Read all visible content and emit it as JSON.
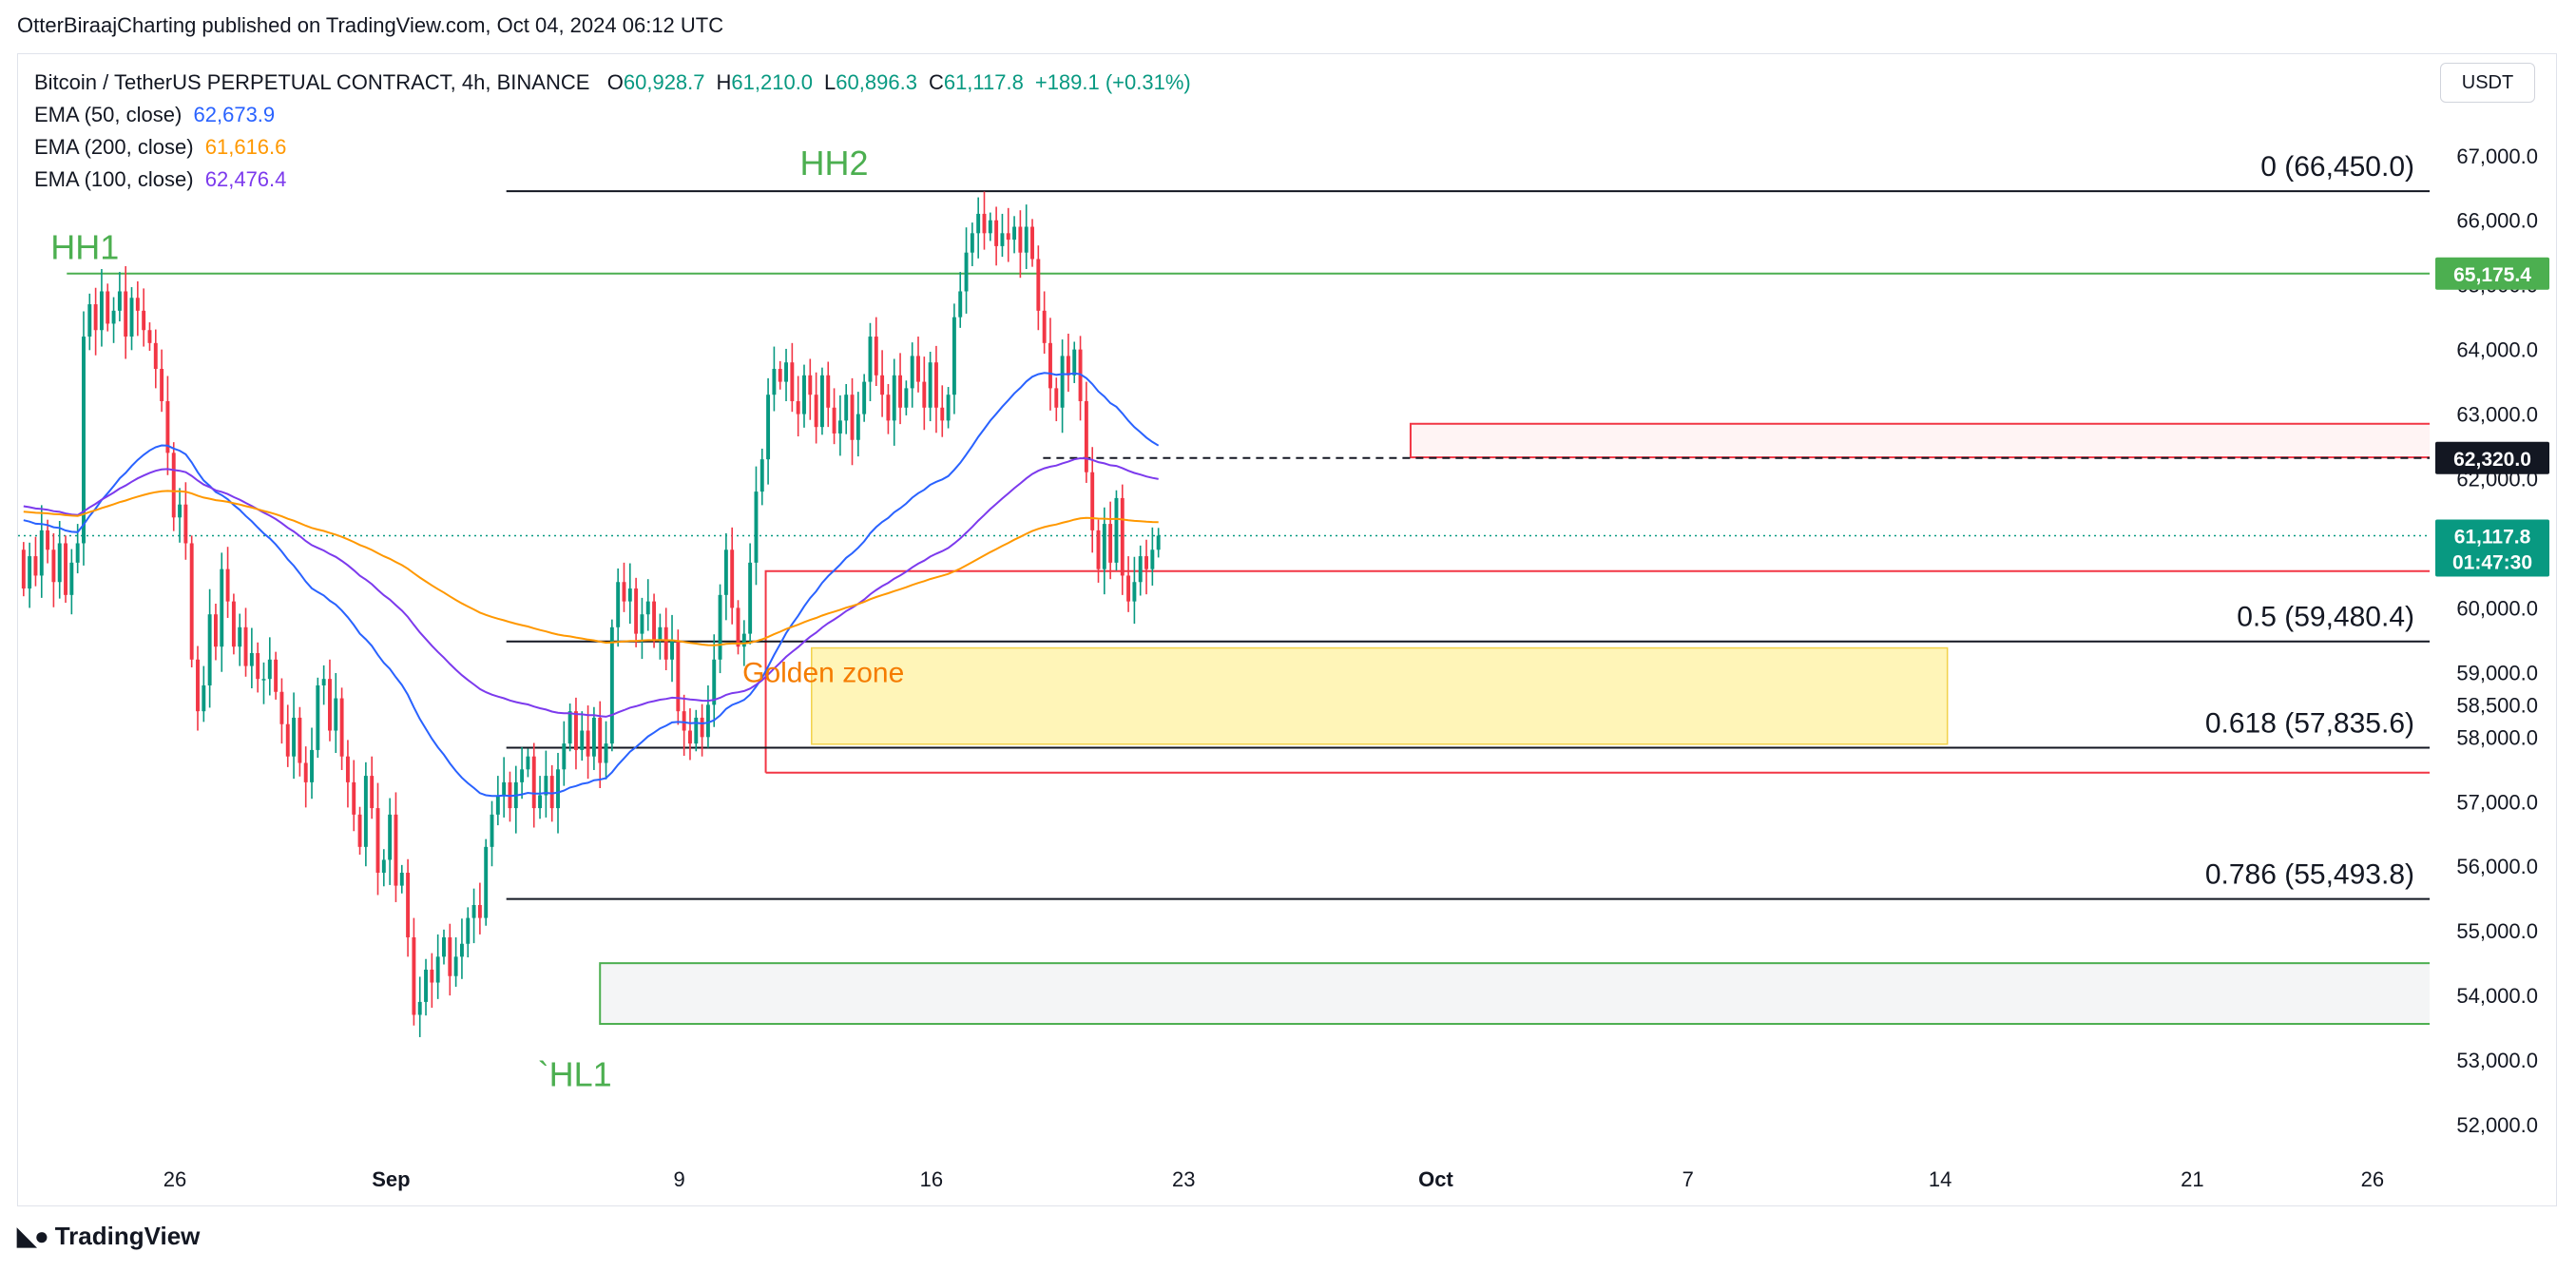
{
  "header": {
    "publisher_line": "OtterBiraajCharting published on TradingView.com, Oct 04, 2024 06:12 UTC"
  },
  "legend": {
    "symbol": "Bitcoin / TetherUS PERPETUAL CONTRACT, 4h, BINANCE",
    "ohlc": [
      {
        "label": "O",
        "value": "60,928.7"
      },
      {
        "label": "H",
        "value": "61,210.0"
      },
      {
        "label": "L",
        "value": "60,896.3"
      },
      {
        "label": "C",
        "value": "61,117.8"
      }
    ],
    "change": "+189.1 (+0.31%)",
    "indicators": [
      {
        "label": "EMA (50, close)",
        "value": "62,673.9",
        "color": "#2962ff"
      },
      {
        "label": "EMA (200, close)",
        "value": "61,616.6",
        "color": "#ff9800"
      },
      {
        "label": "EMA (100, close)",
        "value": "62,476.4",
        "color": "#7c3aed"
      }
    ]
  },
  "currency_button": "USDT",
  "footer": {
    "brand": "TradingView",
    "logo_icon": "tradingview-logo-icon"
  },
  "colors": {
    "up": "#089981",
    "down": "#f23645",
    "ema50": "#2962ff",
    "ema100": "#7c3aed",
    "ema200": "#ff9800",
    "green_line": "#4caf50",
    "zone": "#fff5b8"
  },
  "chart_data": {
    "type": "candlestick",
    "title": "Bitcoin / TetherUS PERPETUAL CONTRACT, 4h, BINANCE",
    "x_ticks": [
      "26",
      "Sep",
      "9",
      "16",
      "23",
      "Oct",
      "7",
      "14",
      "21",
      "26"
    ],
    "x_tick_days": [
      26,
      32,
      40,
      47,
      54,
      61,
      68,
      75,
      82,
      87
    ],
    "y_ticks": [
      52000,
      53000,
      54000,
      55000,
      56000,
      57000,
      58000,
      58500,
      59000,
      60000,
      62000,
      63000,
      64000,
      65000,
      66000,
      67000
    ],
    "ylim": [
      51500,
      67400
    ],
    "price_badges": [
      {
        "label": "65,175.4",
        "value": 65175.4,
        "color": "#4caf50"
      },
      {
        "label": "62,320.0",
        "value": 62320.0,
        "color": "#131722"
      },
      {
        "label": "61,117.8",
        "sub": "01:47:30",
        "value": 61117.8,
        "color": "#089981"
      }
    ],
    "fib_levels": [
      {
        "label": "0 (66,450.0)",
        "value": 66450.0
      },
      {
        "label": "0.5 (59,480.4)",
        "value": 59480.4
      },
      {
        "label": "0.618 (57,835.6)",
        "value": 57835.6
      },
      {
        "label": "0.786 (55,493.8)",
        "value": 55493.8
      }
    ],
    "annotations": [
      {
        "text": "HH1",
        "day": 23.5,
        "value": 65400
      },
      {
        "text": "HH2",
        "day": 44.3,
        "value": 66700
      },
      {
        "text": "`HL1",
        "day": 37.1,
        "value": 52600
      },
      {
        "text": "Golden zone",
        "day": 44.0,
        "value": 58850
      }
    ],
    "closes": [
      60300,
      60800,
      60500,
      61200,
      60900,
      60400,
      61000,
      60200,
      60700,
      61000,
      64200,
      64700,
      64300,
      64900,
      64400,
      64600,
      64900,
      64200,
      64800,
      64600,
      64300,
      64100,
      63700,
      63200,
      62400,
      61400,
      61600,
      61000,
      59200,
      58400,
      58800,
      59900,
      59400,
      60600,
      60100,
      59400,
      59700,
      59100,
      59300,
      58900,
      58900,
      59200,
      58700,
      58200,
      57700,
      58300,
      57600,
      57300,
      57800,
      58800,
      58900,
      58100,
      58600,
      57700,
      57300,
      56800,
      56300,
      57400,
      56900,
      55900,
      56100,
      56800,
      55700,
      55900,
      54900,
      53700,
      53900,
      54400,
      54200,
      54600,
      54900,
      54300,
      54600,
      54800,
      55200,
      55400,
      55200,
      56300,
      56800,
      57100,
      57300,
      56900,
      57300,
      57500,
      57700,
      56900,
      57100,
      57400,
      56900,
      57500,
      57900,
      58400,
      57800,
      58100,
      57700,
      58300,
      57600,
      57900,
      59700,
      60400,
      60100,
      60300,
      59600,
      59900,
      60100,
      59500,
      59700,
      59200,
      59500,
      58400,
      58100,
      57900,
      58300,
      58000,
      58500,
      59200,
      60200,
      60900,
      60000,
      59400,
      59600,
      60700,
      61800,
      62300,
      63300,
      63700,
      63500,
      63800,
      63200,
      63000,
      63600,
      63300,
      62800,
      63600,
      63100,
      62700,
      62900,
      63300,
      62600,
      63000,
      63500,
      64200,
      63600,
      63300,
      62900,
      63600,
      63100,
      63400,
      63900,
      63500,
      63100,
      63800,
      63100,
      62900,
      63300,
      64500,
      64900,
      65500,
      65800,
      66100,
      65800,
      66000,
      65600,
      65800,
      65700,
      65900,
      65500,
      65900,
      65400,
      64600,
      64100,
      63400,
      63100,
      63900,
      63600,
      64000,
      63200,
      62100,
      61200,
      60600,
      61300,
      60700,
      61700,
      60500,
      60100,
      60400,
      60800,
      60600,
      60900,
      61117.8
    ],
    "series": [
      {
        "name": "EMA (50, close)",
        "last": 62673.9
      },
      {
        "name": "EMA (200, close)",
        "last": 61616.6
      },
      {
        "name": "EMA (100, close)",
        "last": 62476.4
      }
    ]
  }
}
